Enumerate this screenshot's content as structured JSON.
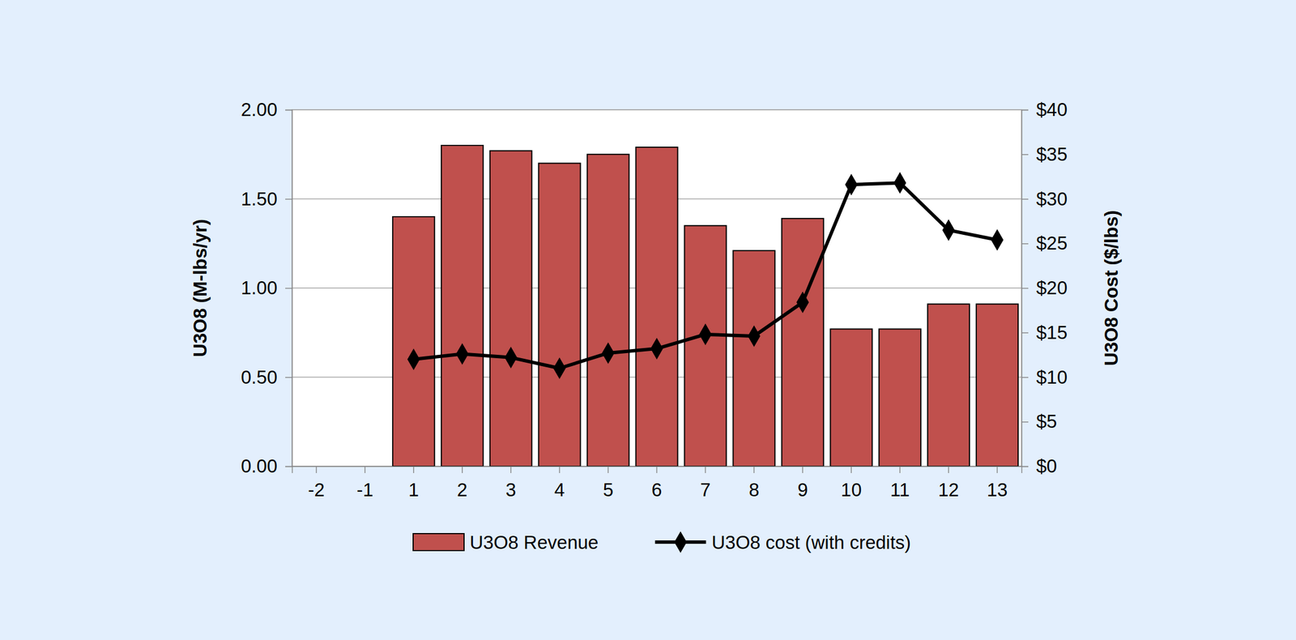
{
  "chart_data": {
    "type": "bar",
    "categories": [
      "-2",
      "-1",
      "1",
      "2",
      "3",
      "4",
      "5",
      "6",
      "7",
      "8",
      "9",
      "10",
      "11",
      "12",
      "13"
    ],
    "series": [
      {
        "name": "U3O8 Revenue",
        "type": "bar",
        "color": "#c0504d",
        "values": [
          null,
          null,
          1.4,
          1.8,
          1.77,
          1.7,
          1.75,
          1.79,
          1.35,
          1.21,
          1.39,
          0.77,
          0.77,
          0.91,
          0.91
        ]
      },
      {
        "name": "U3O8 cost (with credits)",
        "type": "line",
        "axis": "y2",
        "color": "#000000",
        "marker": "diamond",
        "values": [
          null,
          null,
          12.0,
          12.6,
          12.2,
          11.0,
          12.7,
          13.2,
          14.8,
          14.6,
          18.4,
          31.6,
          31.8,
          26.5,
          25.4
        ]
      }
    ],
    "ylabel": "U3O8 (M-lbs/yr)",
    "y2label": "U3O8 Cost ($/lbs)",
    "ylim": [
      0,
      2
    ],
    "yticks": [
      {
        "value": 0,
        "label": "0.00"
      },
      {
        "value": 0.5,
        "label": "0.50"
      },
      {
        "value": 1,
        "label": "1.00"
      },
      {
        "value": 1.5,
        "label": "1.50"
      },
      {
        "value": 2,
        "label": "2.00"
      }
    ],
    "y2lim": [
      0,
      40
    ],
    "y2ticks": [
      {
        "value": 0,
        "label": "$0"
      },
      {
        "value": 5,
        "label": "$5"
      },
      {
        "value": 10,
        "label": "$10"
      },
      {
        "value": 15,
        "label": "$15"
      },
      {
        "value": 20,
        "label": "$20"
      },
      {
        "value": 25,
        "label": "$25"
      },
      {
        "value": 30,
        "label": "$30"
      },
      {
        "value": 35,
        "label": "$35"
      },
      {
        "value": 40,
        "label": "$40"
      }
    ],
    "grid": true,
    "legend": "bottom"
  }
}
